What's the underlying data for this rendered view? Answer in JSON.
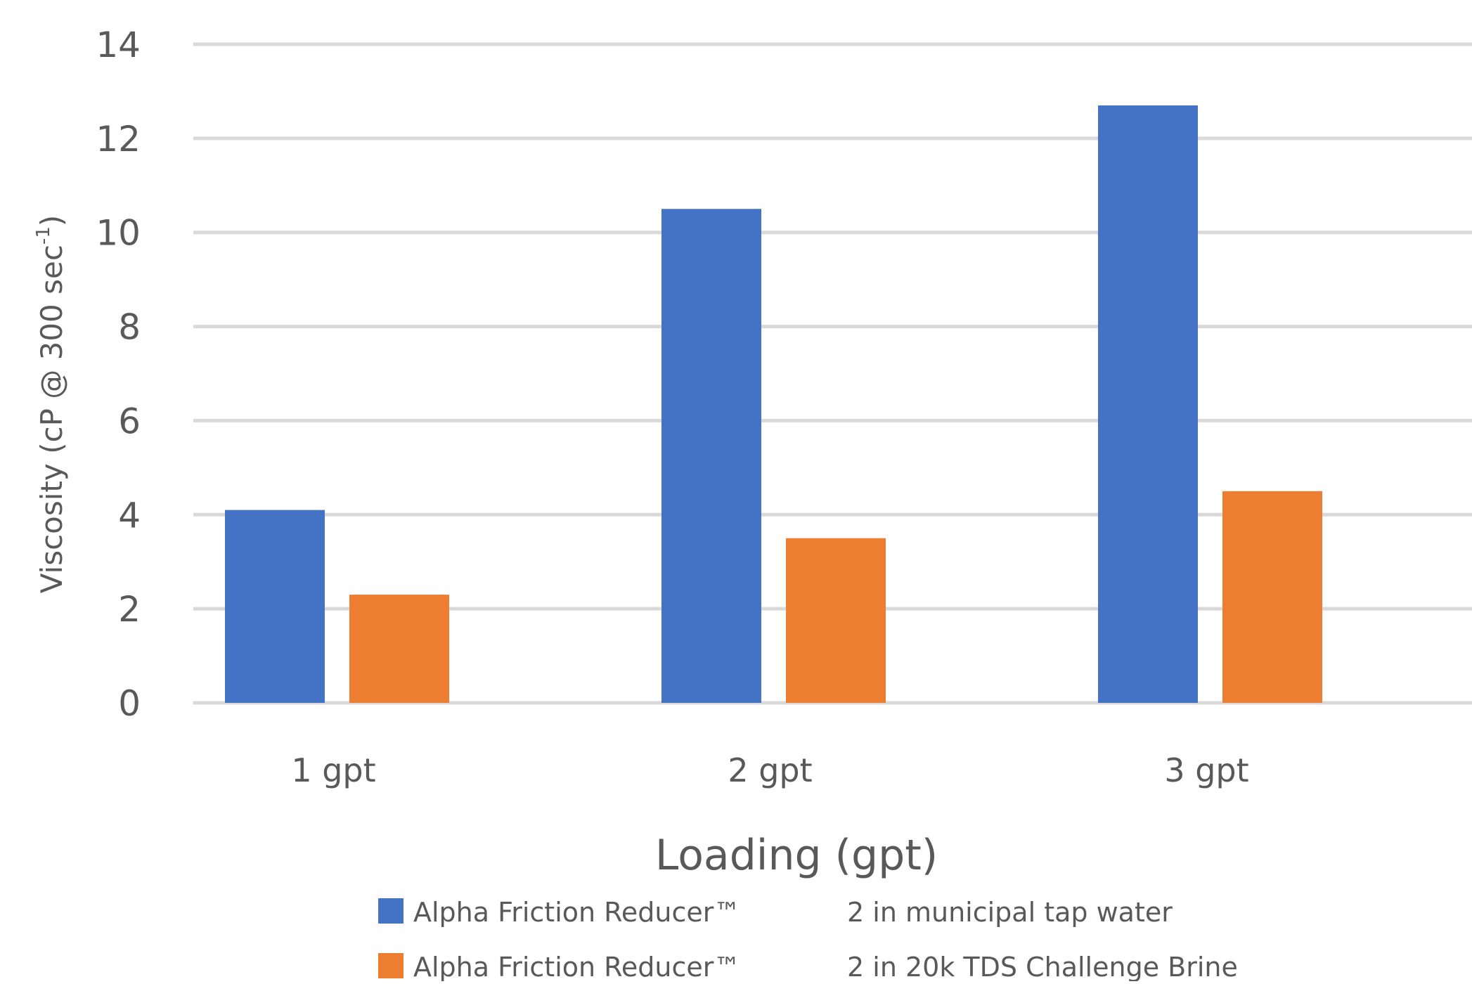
{
  "chart_data": {
    "type": "bar",
    "categories": [
      "1 gpt",
      "2 gpt",
      "3 gpt"
    ],
    "series": [
      {
        "name": "Alpha Friction Reducer™ 2 in municipal tap water",
        "legend_left": "Alpha Friction Reducer™",
        "legend_right": "2 in municipal tap water",
        "color": "#4472c4",
        "values": [
          4.1,
          10.5,
          12.7
        ]
      },
      {
        "name": "Alpha Friction Reducer™ 2 in 20k TDS Challenge Brine",
        "legend_left": "Alpha Friction Reducer™",
        "legend_right": "2 in 20k TDS Challenge Brine",
        "color": "#ed7d31",
        "values": [
          2.3,
          3.5,
          4.5
        ]
      }
    ],
    "xlabel": "Loading (gpt)",
    "ylabel_main": "Viscosity (cP @ 300 sec",
    "ylabel_sup": "-1",
    "ylabel_close": ")",
    "ylim": [
      0,
      14
    ],
    "yticks": [
      "0",
      "2",
      "4",
      "6",
      "8",
      "10",
      "12",
      "14"
    ],
    "grid": true,
    "legend_position": "bottom"
  }
}
